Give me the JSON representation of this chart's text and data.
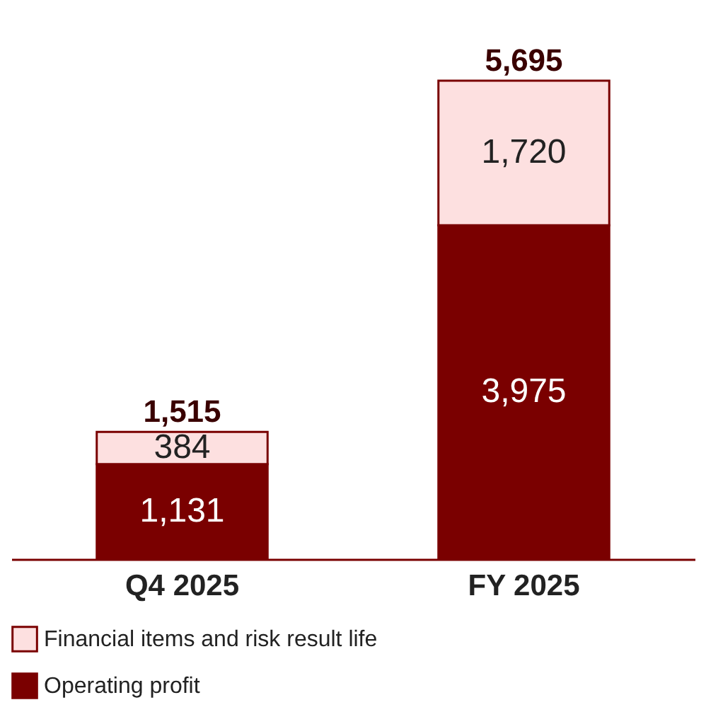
{
  "chart_data": {
    "type": "bar",
    "stacked": true,
    "legend": "bottom",
    "categories": [
      "Q4 2025",
      "FY 2025"
    ],
    "series": [
      {
        "name": "Operating profit",
        "color": "#7a0000",
        "values": [
          1131,
          3975
        ],
        "value_labels": [
          "1,131",
          "3,975"
        ]
      },
      {
        "name": "Financial items and risk result life",
        "color": "#fde0e0",
        "values": [
          384,
          1720
        ],
        "value_labels": [
          "384",
          "1,720"
        ]
      }
    ],
    "totals": [
      "1,515",
      "5,695"
    ]
  }
}
